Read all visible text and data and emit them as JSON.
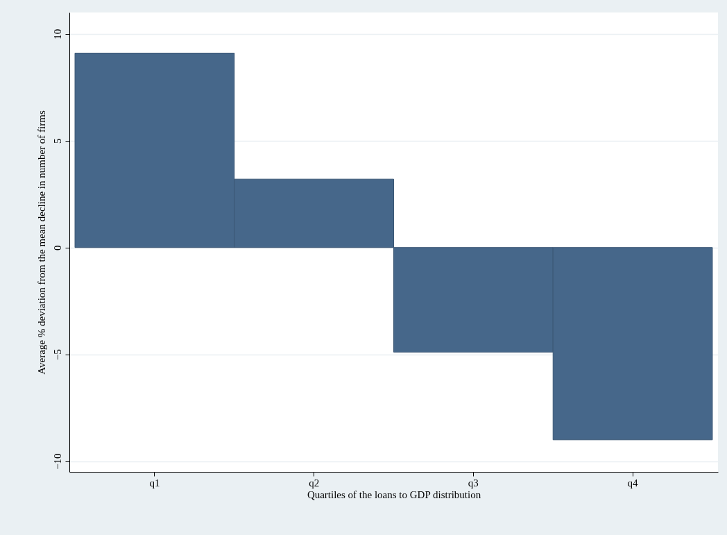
{
  "chart_data": {
    "type": "bar",
    "xlabel": "Quartiles of the loans to GDP distribution",
    "ylabel": "Average % deviation from the mean   decline in number of firms",
    "categories": [
      "q1",
      "q2",
      "q3",
      "q4"
    ],
    "values": [
      9.1,
      3.2,
      -4.9,
      -9.0
    ],
    "color": "#46678a",
    "ylim": [
      -10.5,
      11
    ],
    "yticks": [
      -10,
      -5,
      0,
      5,
      10
    ],
    "grid": "y"
  }
}
